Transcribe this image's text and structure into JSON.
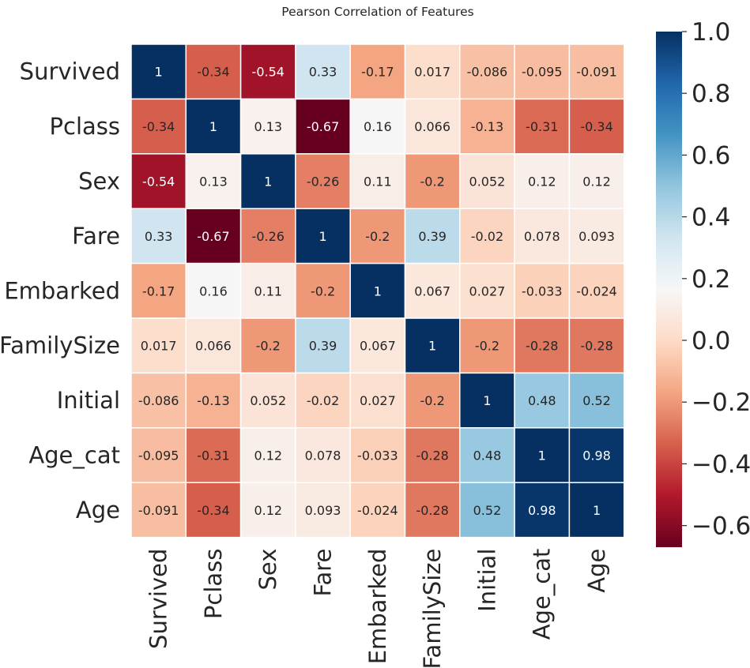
{
  "chart_data": {
    "type": "heatmap",
    "title": "Pearson Correlation of Features",
    "rows": [
      "Survived",
      "Pclass",
      "Sex",
      "Fare",
      "Embarked",
      "FamilySize",
      "Initial",
      "Age_cat",
      "Age"
    ],
    "columns": [
      "Survived",
      "Pclass",
      "Sex",
      "Fare",
      "Embarked",
      "FamilySize",
      "Initial",
      "Age_cat",
      "Age"
    ],
    "values": [
      [
        1,
        -0.34,
        -0.54,
        0.33,
        -0.17,
        0.017,
        -0.086,
        -0.095,
        -0.091
      ],
      [
        -0.34,
        1,
        0.13,
        -0.67,
        0.16,
        0.066,
        -0.13,
        -0.31,
        -0.34
      ],
      [
        -0.54,
        0.13,
        1,
        -0.26,
        0.11,
        -0.2,
        0.052,
        0.12,
        0.12
      ],
      [
        0.33,
        -0.67,
        -0.26,
        1,
        -0.2,
        0.39,
        -0.02,
        0.078,
        0.093
      ],
      [
        -0.17,
        0.16,
        0.11,
        -0.2,
        1,
        0.067,
        0.027,
        -0.033,
        -0.024
      ],
      [
        0.017,
        0.066,
        -0.2,
        0.39,
        0.067,
        1,
        -0.2,
        -0.28,
        -0.28
      ],
      [
        -0.086,
        -0.13,
        0.052,
        -0.02,
        0.027,
        -0.2,
        1,
        0.48,
        0.52
      ],
      [
        -0.095,
        -0.31,
        0.12,
        0.078,
        -0.033,
        -0.28,
        0.48,
        1,
        0.98
      ],
      [
        -0.091,
        -0.34,
        0.12,
        0.093,
        -0.024,
        -0.28,
        0.52,
        0.98,
        1
      ]
    ],
    "annotations": [
      [
        "1",
        "-0.34",
        "-0.54",
        "0.33",
        "-0.17",
        "0.017",
        "-0.086",
        "-0.095",
        "-0.091"
      ],
      [
        "-0.34",
        "1",
        "0.13",
        "-0.67",
        "0.16",
        "0.066",
        "-0.13",
        "-0.31",
        "-0.34"
      ],
      [
        "-0.54",
        "0.13",
        "1",
        "-0.26",
        "0.11",
        "-0.2",
        "0.052",
        "0.12",
        "0.12"
      ],
      [
        "0.33",
        "-0.67",
        "-0.26",
        "1",
        "-0.2",
        "0.39",
        "-0.02",
        "0.078",
        "0.093"
      ],
      [
        "-0.17",
        "0.16",
        "0.11",
        "-0.2",
        "1",
        "0.067",
        "0.027",
        "-0.033",
        "-0.024"
      ],
      [
        "0.017",
        "0.066",
        "-0.2",
        "0.39",
        "0.067",
        "1",
        "-0.2",
        "-0.28",
        "-0.28"
      ],
      [
        "-0.086",
        "-0.13",
        "0.052",
        "-0.02",
        "0.027",
        "-0.2",
        "1",
        "0.48",
        "0.52"
      ],
      [
        "-0.095",
        "-0.31",
        "0.12",
        "0.078",
        "-0.033",
        "-0.28",
        "0.48",
        "1",
        "0.98"
      ],
      [
        "-0.091",
        "-0.34",
        "0.12",
        "0.093",
        "-0.024",
        "-0.28",
        "0.52",
        "0.98",
        "1"
      ]
    ],
    "colormap": "RdBu",
    "vmin": -0.67,
    "vmax": 1.0,
    "colorbar": {
      "ticks": [
        1.0,
        0.8,
        0.6,
        0.4,
        0.2,
        0.0,
        -0.2,
        -0.4,
        -0.6
      ],
      "tick_labels": [
        "1.0",
        "0.8",
        "0.6",
        "0.4",
        "0.2",
        "0.0",
        "−0.2",
        "−0.4",
        "−0.6"
      ]
    },
    "cell_border_color": "#ffffff",
    "annotation_color_dark_bg": "#ffffff",
    "annotation_color_light_bg": "#262626"
  }
}
